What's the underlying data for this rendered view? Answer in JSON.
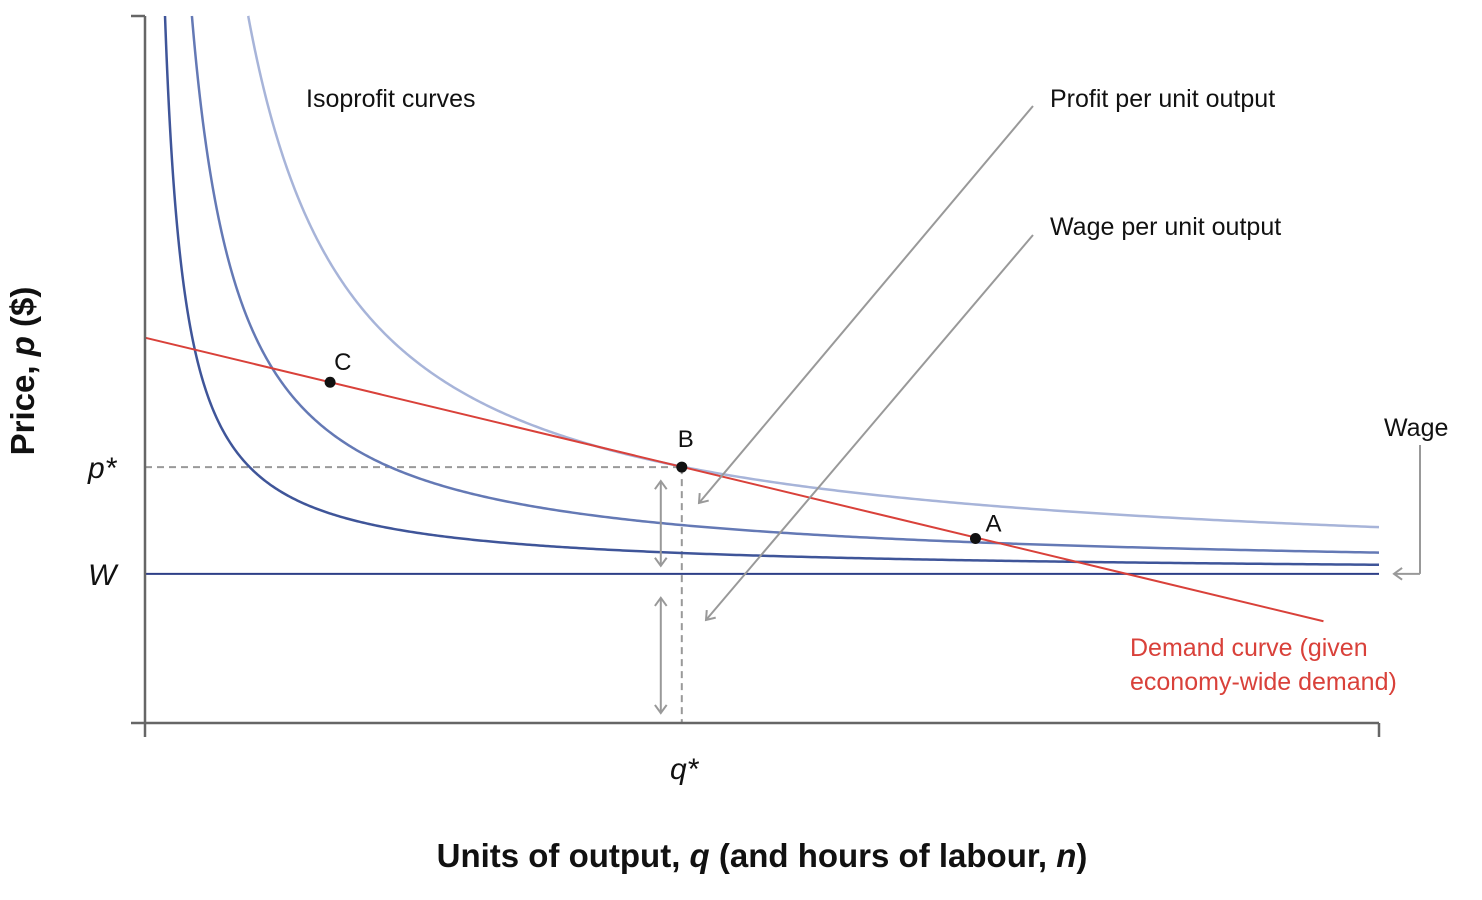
{
  "chart_data": {
    "type": "line",
    "title": "",
    "xlabel": {
      "prefix": "Units of output, ",
      "var": "q",
      "middle": " (and hours of labour, ",
      "var2": "n",
      "suffix": ")"
    },
    "ylabel": {
      "prefix": "Price, ",
      "var": "p",
      "suffix": " ($)"
    },
    "xlim": [
      0,
      1000
    ],
    "ylim": [
      0,
      1000
    ],
    "ticks": {
      "x": [
        {
          "label": "q*",
          "value": 435
        }
      ],
      "y": [
        {
          "label": "p*",
          "value": 362
        },
        {
          "label": "W",
          "value": 211
        }
      ]
    },
    "wage": 211,
    "demand": {
      "label_line1": "Demand curve (given",
      "label_line2": "economy-wide demand)",
      "intercept": 545,
      "slope": -0.42
    },
    "isoprofit": {
      "label": "Isoprofit curves",
      "levels": [
        {
          "profit": 12800
        },
        {
          "profit": 30000
        },
        {
          "profit": 66000
        }
      ]
    },
    "points": [
      {
        "label": "C",
        "x": 150,
        "y": 482
      },
      {
        "label": "B",
        "x": 435,
        "y": 362
      },
      {
        "label": "A",
        "x": 673,
        "y": 261
      }
    ],
    "annotations": {
      "isoprofit_label": "Isoprofit curves",
      "profit_per_unit": "Profit per unit output",
      "wage_per_unit": "Wage per unit output",
      "wage": "Wage"
    },
    "colors": {
      "axis": "#666666",
      "guide": "#999999",
      "demand": "#d9413a",
      "wage_line": "#2e3f87",
      "iso_low": "#3f5599",
      "iso_mid": "#6479b5",
      "iso_high": "#a7b4d9",
      "arrow": "#999999",
      "text": "#111111"
    }
  }
}
